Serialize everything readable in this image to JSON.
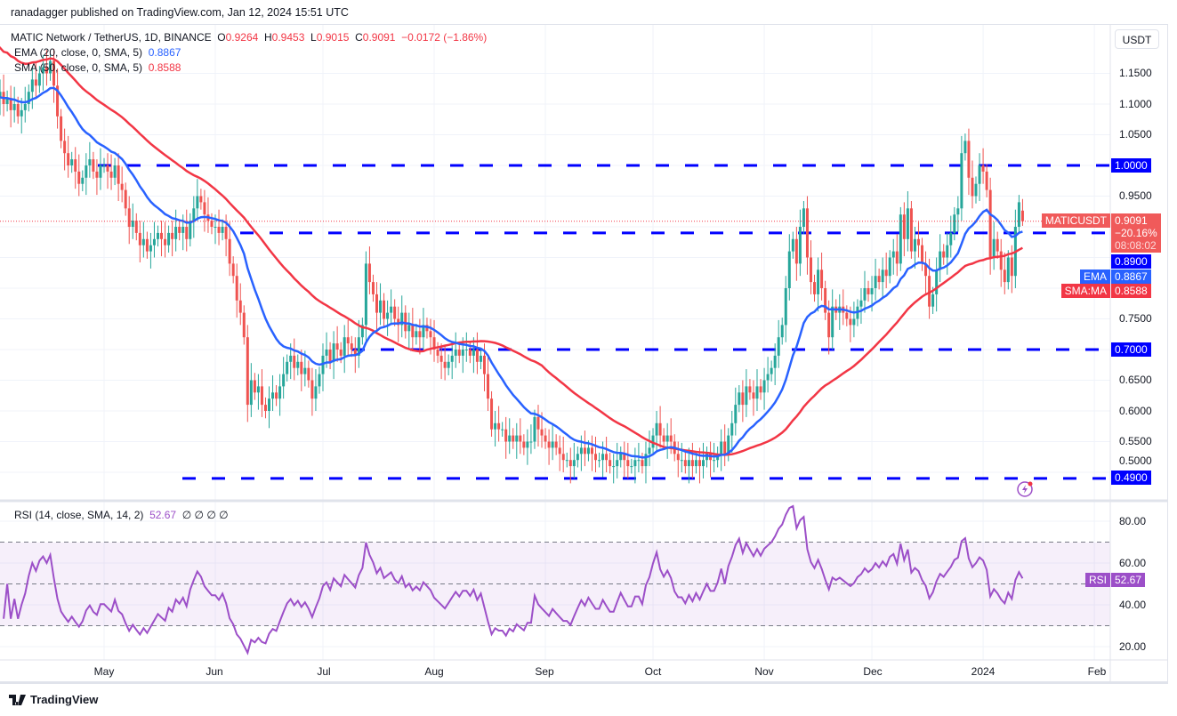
{
  "header": {
    "published": "ranadagger published on TradingView.com, Jan 12, 2024 15:51 UTC"
  },
  "legend": {
    "symbol": "MATIC Network / TetherUS, 1D, BINANCE",
    "o_label": "O",
    "o": "0.9264",
    "h_label": "H",
    "h": "0.9453",
    "l_label": "L",
    "l": "0.9015",
    "c_label": "C",
    "c": "0.9091",
    "change": "−0.0172 (−1.86%)",
    "ema_label": "EMA (20, close, 0, SMA, 5)",
    "ema_value": "0.8867",
    "sma_label": "SMA (50, close, 0, SMA, 5)",
    "sma_value": "0.8588",
    "rsi_label": "RSI (14, close, SMA, 14, 2)",
    "rsi_value": "52.67",
    "rsi_extra": "∅ ∅ ∅ ∅"
  },
  "axis": {
    "currency": "USDT",
    "price_ticks": [
      "1.1500",
      "1.1000",
      "1.0500",
      "0.9500",
      "0.7500",
      "0.6500",
      "0.6000",
      "0.5500",
      "0.5000"
    ],
    "rsi_ticks": [
      "80.00",
      "60.00",
      "40.00",
      "20.00"
    ],
    "time_ticks": [
      "May",
      "Jun",
      "Jul",
      "Aug",
      "Sep",
      "Oct",
      "Nov",
      "Dec",
      "2024",
      "Feb"
    ]
  },
  "badges": {
    "symbol": "MATICUSDT",
    "price": "0.9091",
    "change_pct": "−20.16%",
    "countdown": "08:08:02",
    "level_100": "1.0000",
    "level_089": "0.8900",
    "level_070": "0.7000",
    "level_049": "0.4900",
    "ema_tag": "EMA",
    "ema": "0.8867",
    "sma_tag": "SMA:MA",
    "sma": "0.8588",
    "rsi_tag": "RSI",
    "rsi": "52.67"
  },
  "footer": {
    "brand": "TradingView"
  },
  "colors": {
    "up": "#26a69a",
    "down": "#ef5350",
    "ema": "#2962ff",
    "sma": "#f23645",
    "levels": "#0000ff",
    "rsi": "#9c4fc8"
  },
  "chart_data": {
    "type": "candlestick",
    "symbol": "MATICUSDT",
    "interval": "1D",
    "start_date": "2023-04-01",
    "end_date": "2024-01-12",
    "ylim": [
      0.47,
      1.2
    ],
    "rsi_ylim": [
      15,
      90
    ],
    "horizontal_levels": [
      1.0,
      0.89,
      0.7,
      0.49
    ],
    "rsi_bands": [
      70,
      50,
      30
    ],
    "indicators": [
      "EMA 20",
      "SMA 50",
      "RSI 14"
    ],
    "closes": [
      1.11,
      1.12,
      1.1,
      1.11,
      1.09,
      1.1,
      1.08,
      1.09,
      1.1,
      1.12,
      1.14,
      1.13,
      1.15,
      1.16,
      1.15,
      1.17,
      1.13,
      1.08,
      1.04,
      1.02,
      1.0,
      1.01,
      0.99,
      0.97,
      0.98,
      1.0,
      1.01,
      0.99,
      0.98,
      1.0,
      1.0,
      0.99,
      0.98,
      1.0,
      0.97,
      0.96,
      0.93,
      0.9,
      0.91,
      0.89,
      0.87,
      0.88,
      0.86,
      0.87,
      0.88,
      0.89,
      0.88,
      0.87,
      0.89,
      0.88,
      0.9,
      0.89,
      0.9,
      0.88,
      0.91,
      0.93,
      0.95,
      0.94,
      0.92,
      0.91,
      0.9,
      0.9,
      0.89,
      0.9,
      0.88,
      0.84,
      0.82,
      0.78,
      0.76,
      0.72,
      0.61,
      0.65,
      0.63,
      0.64,
      0.61,
      0.6,
      0.62,
      0.63,
      0.62,
      0.64,
      0.66,
      0.68,
      0.69,
      0.67,
      0.68,
      0.66,
      0.67,
      0.65,
      0.62,
      0.64,
      0.66,
      0.69,
      0.7,
      0.68,
      0.71,
      0.7,
      0.69,
      0.72,
      0.71,
      0.7,
      0.69,
      0.72,
      0.74,
      0.84,
      0.81,
      0.79,
      0.76,
      0.78,
      0.75,
      0.76,
      0.77,
      0.75,
      0.74,
      0.76,
      0.73,
      0.74,
      0.72,
      0.73,
      0.72,
      0.74,
      0.73,
      0.72,
      0.7,
      0.69,
      0.68,
      0.67,
      0.68,
      0.69,
      0.7,
      0.69,
      0.7,
      0.7,
      0.69,
      0.7,
      0.68,
      0.69,
      0.66,
      0.62,
      0.57,
      0.58,
      0.57,
      0.57,
      0.55,
      0.56,
      0.55,
      0.56,
      0.55,
      0.54,
      0.55,
      0.55,
      0.59,
      0.57,
      0.56,
      0.55,
      0.54,
      0.55,
      0.54,
      0.53,
      0.52,
      0.52,
      0.51,
      0.52,
      0.53,
      0.54,
      0.53,
      0.54,
      0.53,
      0.52,
      0.52,
      0.53,
      0.52,
      0.51,
      0.51,
      0.52,
      0.53,
      0.52,
      0.51,
      0.51,
      0.52,
      0.52,
      0.51,
      0.53,
      0.54,
      0.56,
      0.58,
      0.56,
      0.55,
      0.56,
      0.55,
      0.53,
      0.52,
      0.52,
      0.51,
      0.52,
      0.51,
      0.52,
      0.51,
      0.52,
      0.53,
      0.52,
      0.52,
      0.53,
      0.55,
      0.53,
      0.56,
      0.58,
      0.61,
      0.63,
      0.61,
      0.64,
      0.63,
      0.62,
      0.64,
      0.63,
      0.65,
      0.66,
      0.67,
      0.69,
      0.72,
      0.74,
      0.8,
      0.86,
      0.88,
      0.84,
      0.9,
      0.93,
      0.85,
      0.81,
      0.79,
      0.83,
      0.8,
      0.76,
      0.72,
      0.77,
      0.76,
      0.77,
      0.76,
      0.75,
      0.74,
      0.75,
      0.77,
      0.78,
      0.8,
      0.79,
      0.8,
      0.82,
      0.81,
      0.83,
      0.82,
      0.85,
      0.86,
      0.84,
      0.92,
      0.88,
      0.93,
      0.86,
      0.88,
      0.87,
      0.84,
      0.82,
      0.77,
      0.79,
      0.83,
      0.86,
      0.85,
      0.87,
      0.89,
      0.92,
      0.93,
      1.02,
      1.04,
      0.98,
      0.95,
      0.97,
      1.0,
      0.99,
      0.96,
      0.85,
      0.88,
      0.86,
      0.83,
      0.81,
      0.85,
      0.82,
      0.9,
      0.94,
      0.9091
    ],
    "last_candle": {
      "open": 0.9264,
      "high": 0.9453,
      "low": 0.9015,
      "close": 0.9091
    },
    "last_ema20": 0.8867,
    "last_sma50": 0.8588,
    "last_rsi": 52.67
  }
}
